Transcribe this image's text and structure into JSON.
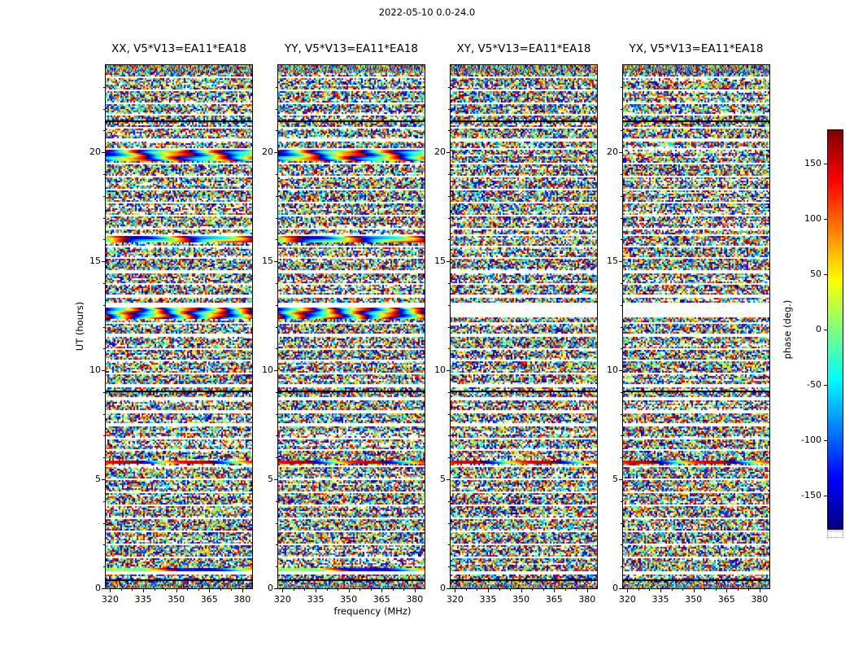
{
  "chart_data": {
    "type": "heatmap",
    "title": "2022-05-10 0.0-24.0",
    "xlabel": "frequency (MHz)",
    "ylabel": "UT (hours)",
    "panels": [
      {
        "pol": "XX",
        "label": "XX, V5*V13=EA11*EA18"
      },
      {
        "pol": "YY",
        "label": "YY, V5*V13=EA11*EA18"
      },
      {
        "pol": "XY",
        "label": "XY, V5*V13=EA11*EA18"
      },
      {
        "pol": "YX",
        "label": "YX, V5*V13=EA11*EA18"
      }
    ],
    "x_axis": {
      "range": [
        318,
        384.5
      ],
      "ticks": [
        320,
        335,
        350,
        365,
        380
      ],
      "minor_step": 5
    },
    "y_axis": {
      "range": [
        0,
        24
      ],
      "ticks": [
        0,
        5,
        10,
        15,
        20
      ],
      "minor_step": 1
    },
    "colorbar": {
      "label": "phase (deg.)",
      "range": [
        -180,
        180
      ],
      "ticks": [
        -150,
        -100,
        -50,
        0,
        50,
        100,
        150
      ],
      "colormap": "jet"
    },
    "colors": {
      "background": "#ffffff",
      "axes": "#000000",
      "gap": "#ffffff",
      "flagged": "#000000"
    },
    "content_note": "Visibility phase vs frequency vs UT for baseline V5*V13=EA11*EA18; mostly decorrelated random phase noise, white horizontal scan gaps, a few flagged black rows, and coherent phase-ramp bands (calibrator scans) strongest in XX and YY.",
    "features": {
      "seed": 7,
      "white_gaps": [
        [
          23.45,
          0.08
        ],
        [
          22.85,
          0.1
        ],
        [
          22.25,
          0.08
        ],
        [
          21.7,
          0.1
        ],
        [
          21.15,
          0.08
        ],
        [
          20.55,
          0.12
        ],
        [
          20.18,
          0.08
        ],
        [
          19.5,
          0.1
        ],
        [
          18.9,
          0.1
        ],
        [
          18.3,
          0.08
        ],
        [
          17.7,
          0.1
        ],
        [
          17.1,
          0.08
        ],
        [
          16.5,
          0.1
        ],
        [
          16.22,
          0.06
        ],
        [
          15.7,
          0.1
        ],
        [
          15.15,
          0.08
        ],
        [
          14.55,
          0.14
        ],
        [
          13.95,
          0.1
        ],
        [
          13.4,
          0.1
        ],
        [
          13.0,
          0.18
        ],
        [
          12.15,
          0.1
        ],
        [
          11.6,
          0.14
        ],
        [
          11.0,
          0.08
        ],
        [
          10.45,
          0.1
        ],
        [
          9.85,
          0.08
        ],
        [
          9.3,
          0.1
        ],
        [
          8.7,
          0.14
        ],
        [
          8.1,
          0.08
        ],
        [
          7.5,
          0.1
        ],
        [
          6.9,
          0.08
        ],
        [
          6.35,
          0.08
        ],
        [
          5.6,
          0.1
        ],
        [
          5.0,
          0.08
        ],
        [
          4.4,
          0.1
        ],
        [
          3.8,
          0.08
        ],
        [
          3.2,
          0.1
        ],
        [
          2.6,
          0.08
        ],
        [
          2.0,
          0.1
        ],
        [
          1.4,
          0.08
        ],
        [
          0.72,
          0.1
        ]
      ],
      "black_rows": [
        [
          21.45,
          0.07
        ],
        [
          17.5,
          0.05
        ],
        [
          9.05,
          0.07
        ],
        [
          6.15,
          0.05
        ],
        [
          0.35,
          0.1
        ]
      ],
      "coherent_bands": [
        {
          "t": 19.85,
          "h": 0.5,
          "panels": [
            0,
            1
          ],
          "cycles": 3.5,
          "phase": 0.1
        },
        {
          "t": 16.0,
          "h": 0.3,
          "panels": [
            0,
            1
          ],
          "cycles": 2.5,
          "phase": 0.55
        },
        {
          "t": 12.65,
          "h": 0.55,
          "panels": [
            0,
            1
          ],
          "cycles": 5.0,
          "phase": 0.0
        },
        {
          "t": 5.82,
          "h": 0.15,
          "panels": [
            0,
            1,
            2,
            3
          ],
          "cycles": 2.0,
          "phase": 0.65
        },
        {
          "t": 0.85,
          "h": 0.14,
          "panels": [
            0,
            1
          ],
          "cycles": 1.2,
          "phase": 0.3
        }
      ],
      "panel_gaps": [
        {
          "t": 12.65,
          "h": 0.5,
          "panels": [
            2,
            3
          ]
        }
      ]
    }
  }
}
